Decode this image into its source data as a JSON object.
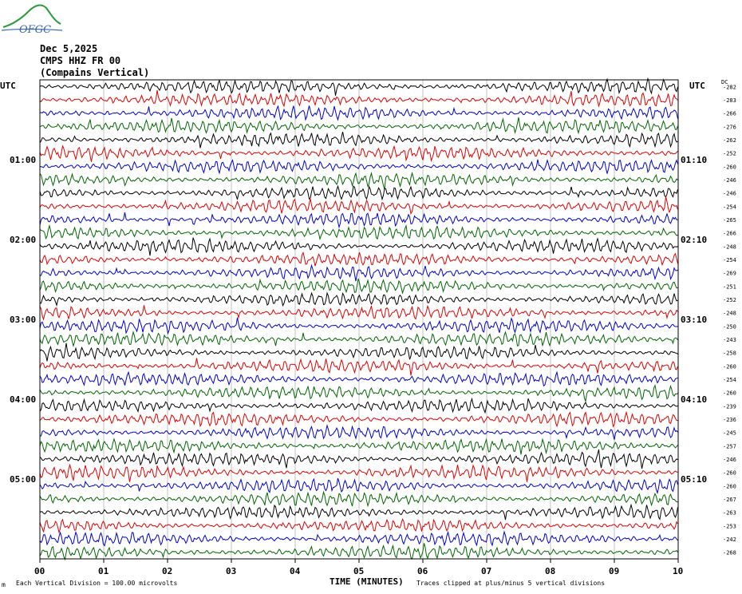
{
  "logo": {
    "text": "OFGC",
    "primary_color": "#2a9a3a",
    "secondary_color": "#3a66b0"
  },
  "header": {
    "date": "Dec 5,2025",
    "station": "CMPS HHZ FR 00",
    "site": "(Compains Vertical)"
  },
  "chart_data": {
    "type": "line",
    "title": "",
    "xlabel": "TIME (MINUTES)",
    "ylabel": "",
    "left_axis_title": "UTC",
    "right_axis_title": "UTC",
    "dc_title": "DC",
    "x_ticks": [
      "00",
      "01",
      "02",
      "03",
      "04",
      "05",
      "06",
      "07",
      "08",
      "09",
      "10"
    ],
    "xlim": [
      0,
      10
    ],
    "left_time_labels": [
      {
        "row": 6,
        "label": "01:00"
      },
      {
        "row": 12,
        "label": "02:00"
      },
      {
        "row": 18,
        "label": "03:00"
      },
      {
        "row": 24,
        "label": "04:00"
      },
      {
        "row": 30,
        "label": "05:00"
      }
    ],
    "right_time_labels": [
      {
        "row": 6,
        "label": "01:10"
      },
      {
        "row": 12,
        "label": "02:10"
      },
      {
        "row": 18,
        "label": "03:10"
      },
      {
        "row": 24,
        "label": "04:10"
      },
      {
        "row": 30,
        "label": "05:10"
      }
    ],
    "trace_colors": [
      "#000000",
      "#e00000",
      "#0000d0",
      "#006600"
    ],
    "dc_offsets": [
      -282,
      -283,
      -266,
      -276,
      -262,
      -252,
      -260,
      -246,
      -246,
      -254,
      -265,
      -266,
      -248,
      -254,
      -269,
      -251,
      -252,
      -248,
      -250,
      -243,
      -258,
      -260,
      -254,
      -260,
      -239,
      -236,
      -245,
      -257,
      -246,
      -260,
      -260,
      -267,
      -263,
      -253,
      -242,
      -268
    ],
    "grid": true,
    "footer_left": "Each Vertical Division =  100.00 microvolts",
    "footer_right": "Traces clipped at plus/minus 5 vertical divisions"
  }
}
